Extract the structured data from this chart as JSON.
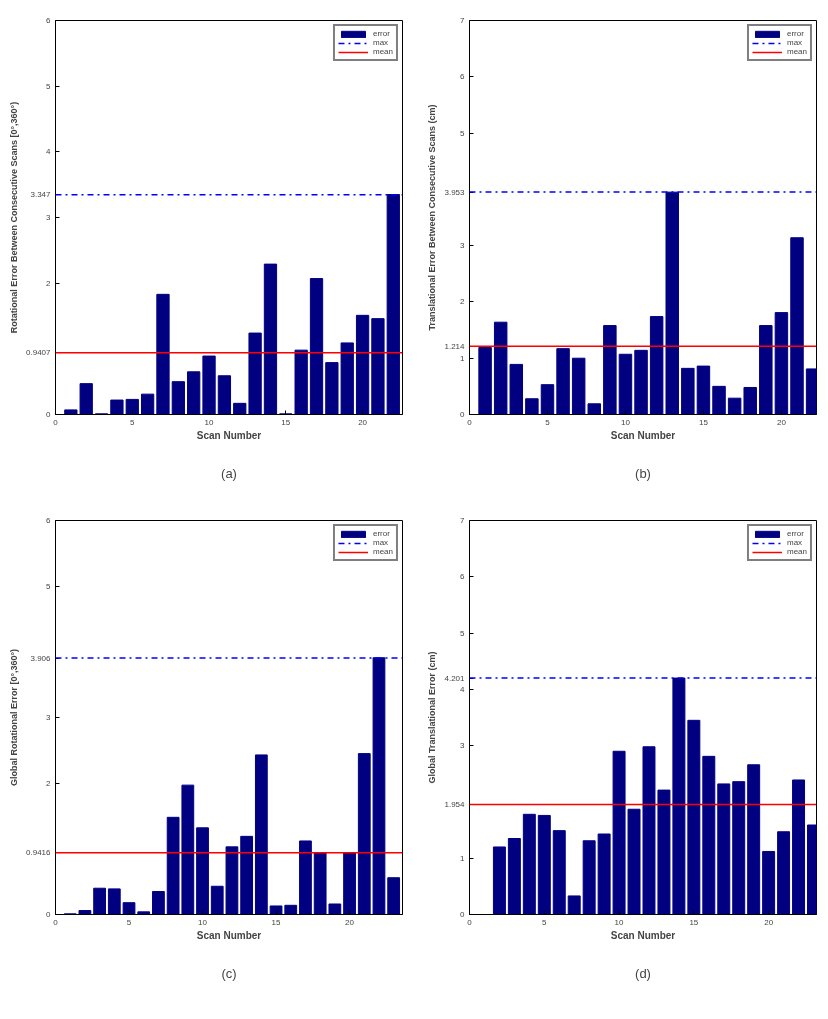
{
  "chart_data": [
    {
      "type": "bar",
      "xlabel": "Scan Number",
      "ylabel": "Rotational Error Between Consecutive Scans [0°,360°)",
      "annotations": [
        "(a)"
      ],
      "legend": "top right",
      "grid": false,
      "x": [
        1,
        2,
        3,
        4,
        5,
        6,
        7,
        8,
        9,
        10,
        11,
        12,
        13,
        14,
        15,
        16,
        17,
        18,
        19,
        20,
        21,
        22
      ],
      "series": [
        {
          "name": "error",
          "color": "#000080",
          "values": [
            0.07,
            0.47,
            0.01,
            0.22,
            0.23,
            0.31,
            1.83,
            0.5,
            0.65,
            0.89,
            0.59,
            0.17,
            1.24,
            2.29,
            0.01,
            0.98,
            2.07,
            0.79,
            1.09,
            1.51,
            1.46,
            3.35
          ]
        }
      ],
      "ref_lines": [
        {
          "axis": "y",
          "value": 3.347,
          "label": "max",
          "color": "#0000ff",
          "line_style": "dashdot"
        },
        {
          "axis": "y",
          "value": 0.9407,
          "label": "mean",
          "color": "#ff0000",
          "line_style": "solid"
        }
      ],
      "xlim": [
        0,
        22.6
      ],
      "xticks": [
        0,
        5,
        10,
        15,
        20
      ],
      "ylim": [
        0,
        6
      ],
      "yticks": [
        0,
        0.9407,
        2,
        3,
        3.347,
        4,
        5,
        6
      ]
    },
    {
      "type": "bar",
      "xlabel": "Scan Number",
      "ylabel": "Translational Error Between Consecutive Scans (cm)",
      "annotations": [
        "(b)"
      ],
      "legend": "top right",
      "grid": false,
      "x": [
        1,
        2,
        3,
        4,
        5,
        6,
        7,
        8,
        9,
        10,
        11,
        12,
        13,
        14,
        15,
        16,
        17,
        18,
        19,
        20,
        21,
        22
      ],
      "series": [
        {
          "name": "error",
          "color": "#000080",
          "values": [
            1.19,
            1.64,
            0.89,
            0.28,
            0.53,
            1.17,
            1.0,
            0.19,
            1.58,
            1.07,
            1.14,
            1.74,
            3.95,
            0.82,
            0.86,
            0.5,
            0.29,
            0.48,
            1.58,
            1.81,
            3.14,
            0.81
          ]
        }
      ],
      "ref_lines": [
        {
          "axis": "y",
          "value": 3.953,
          "label": "max",
          "color": "#0000ff",
          "line_style": "dashdot"
        },
        {
          "axis": "y",
          "value": 1.214,
          "label": "mean",
          "color": "#ff0000",
          "line_style": "solid"
        }
      ],
      "xlim": [
        0,
        22.25
      ],
      "xticks": [
        0,
        5,
        10,
        15,
        20
      ],
      "ylim": [
        0,
        7
      ],
      "yticks": [
        0,
        1,
        1.214,
        2,
        3,
        3.953,
        5,
        6,
        7
      ]
    },
    {
      "type": "bar",
      "xlabel": "Scan Number",
      "ylabel": "Global Rotational Error [0°,360°)",
      "annotations": [
        "(c)"
      ],
      "legend": "top right",
      "grid": false,
      "x": [
        1,
        2,
        3,
        4,
        5,
        6,
        7,
        8,
        9,
        10,
        11,
        12,
        13,
        14,
        15,
        16,
        17,
        18,
        19,
        20,
        21,
        22,
        23
      ],
      "series": [
        {
          "name": "error",
          "color": "#000080",
          "values": [
            0.01,
            0.06,
            0.4,
            0.39,
            0.18,
            0.04,
            0.35,
            1.48,
            1.97,
            1.32,
            0.43,
            1.03,
            1.19,
            2.43,
            0.13,
            0.14,
            1.12,
            0.94,
            0.16,
            0.94,
            2.45,
            3.91,
            0.56
          ]
        }
      ],
      "ref_lines": [
        {
          "axis": "y",
          "value": 3.906,
          "label": "max",
          "color": "#0000ff",
          "line_style": "dashdot"
        },
        {
          "axis": "y",
          "value": 0.9416,
          "label": "mean",
          "color": "#ff0000",
          "line_style": "solid"
        }
      ],
      "xlim": [
        0,
        23.6
      ],
      "xticks": [
        0,
        5,
        10,
        15,
        20
      ],
      "ylim": [
        0,
        6
      ],
      "yticks": [
        0,
        0.9416,
        2,
        3,
        3.906,
        5,
        6
      ]
    },
    {
      "type": "bar",
      "xlabel": "Scan Number",
      "ylabel": "Global Translational Error (cm)",
      "annotations": [
        "(d)"
      ],
      "legend": "top right",
      "grid": false,
      "x": [
        1,
        2,
        3,
        4,
        5,
        6,
        7,
        8,
        9,
        10,
        11,
        12,
        13,
        14,
        15,
        16,
        17,
        18,
        19,
        20,
        21,
        22,
        23
      ],
      "series": [
        {
          "name": "error",
          "color": "#000080",
          "values": [
            0,
            1.2,
            1.35,
            1.78,
            1.76,
            1.49,
            0.33,
            1.31,
            1.43,
            2.9,
            1.87,
            2.98,
            2.21,
            4.2,
            3.45,
            2.81,
            2.32,
            2.36,
            2.66,
            1.12,
            1.47,
            2.39,
            1.59
          ]
        }
      ],
      "ref_lines": [
        {
          "axis": "y",
          "value": 4.201,
          "label": "max",
          "color": "#0000ff",
          "line_style": "dashdot"
        },
        {
          "axis": "y",
          "value": 1.954,
          "label": "mean",
          "color": "#ff0000",
          "line_style": "solid"
        }
      ],
      "xlim": [
        0,
        23.2
      ],
      "xticks": [
        0,
        5,
        10,
        15,
        20
      ],
      "ylim": [
        0,
        7
      ],
      "yticks": [
        0,
        1,
        1.954,
        3,
        4,
        4.201,
        5,
        6,
        7
      ]
    }
  ]
}
